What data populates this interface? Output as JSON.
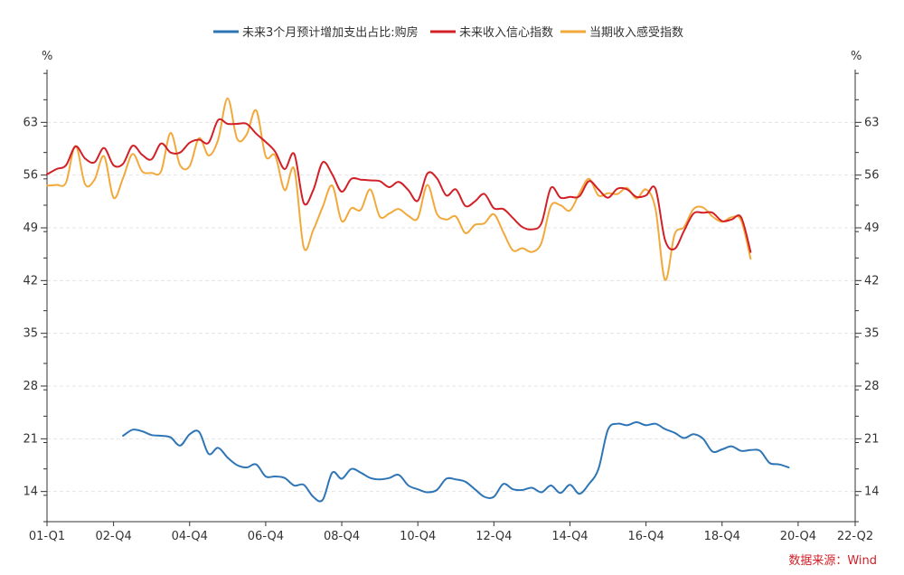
{
  "chart_data": {
    "type": "line",
    "x_tick_labels": [
      "01-Q1",
      "02-Q4",
      "04-Q4",
      "06-Q4",
      "08-Q4",
      "10-Q4",
      "12-Q4",
      "14-Q4",
      "16-Q4",
      "18-Q4",
      "20-Q4",
      "22-Q2"
    ],
    "x_ticks_quarters": [
      0,
      7,
      15,
      23,
      31,
      39,
      47,
      55,
      63,
      71,
      79,
      85
    ],
    "x_range_quarters": [
      0,
      85
    ],
    "y_left": {
      "unit": "%",
      "ticks": [
        14,
        21,
        28,
        35,
        42,
        49,
        56,
        63
      ],
      "range": [
        10,
        70
      ]
    },
    "y_right": {
      "unit": "%",
      "ticks": [
        14,
        21,
        28,
        35,
        42,
        49,
        56,
        63
      ],
      "range": [
        10,
        70
      ]
    },
    "grid": "horizontal dashed",
    "legend_position": "top-center",
    "source": "数据来源：Wind",
    "series": [
      {
        "name": "未来3个月预计增加支出占比:购房",
        "color": "#2e75b6",
        "points": [
          [
            8,
            21.4
          ],
          [
            9,
            22.2
          ],
          [
            10,
            22.0
          ],
          [
            11,
            21.5
          ],
          [
            12,
            21.4
          ],
          [
            13,
            21.2
          ],
          [
            14,
            20.1
          ],
          [
            15,
            21.6
          ],
          [
            16,
            21.9
          ],
          [
            17,
            19.0
          ],
          [
            18,
            19.8
          ],
          [
            19,
            18.5
          ],
          [
            20,
            17.5
          ],
          [
            21,
            17.2
          ],
          [
            22,
            17.6
          ],
          [
            23,
            16.0
          ],
          [
            24,
            16.0
          ],
          [
            25,
            15.8
          ],
          [
            26,
            14.8
          ],
          [
            27,
            14.9
          ],
          [
            28,
            13.3
          ],
          [
            29,
            12.9
          ],
          [
            30,
            16.5
          ],
          [
            31,
            15.7
          ],
          [
            32,
            17.0
          ],
          [
            33,
            16.5
          ],
          [
            34,
            15.8
          ],
          [
            35,
            15.6
          ],
          [
            36,
            15.8
          ],
          [
            37,
            16.2
          ],
          [
            38,
            14.8
          ],
          [
            39,
            14.3
          ],
          [
            40,
            13.9
          ],
          [
            41,
            14.2
          ],
          [
            42,
            15.7
          ],
          [
            43,
            15.6
          ],
          [
            44,
            15.3
          ],
          [
            45,
            14.3
          ],
          [
            46,
            13.3
          ],
          [
            47,
            13.3
          ],
          [
            48,
            15.0
          ],
          [
            49,
            14.3
          ],
          [
            50,
            14.2
          ],
          [
            51,
            14.5
          ],
          [
            52,
            13.9
          ],
          [
            53,
            14.8
          ],
          [
            54,
            13.8
          ],
          [
            55,
            14.9
          ],
          [
            56,
            13.7
          ],
          [
            57,
            15.0
          ],
          [
            58,
            17.0
          ],
          [
            59,
            22.2
          ],
          [
            60,
            23.0
          ],
          [
            61,
            22.8
          ],
          [
            62,
            23.2
          ],
          [
            63,
            22.8
          ],
          [
            64,
            23.0
          ],
          [
            65,
            22.3
          ],
          [
            66,
            21.8
          ],
          [
            67,
            21.1
          ],
          [
            68,
            21.6
          ],
          [
            69,
            21.0
          ],
          [
            70,
            19.3
          ],
          [
            71,
            19.6
          ],
          [
            72,
            20.0
          ],
          [
            73,
            19.4
          ],
          [
            74,
            19.5
          ],
          [
            75,
            19.4
          ],
          [
            76,
            17.8
          ],
          [
            77,
            17.6
          ],
          [
            78,
            17.2
          ]
        ]
      },
      {
        "name": "未来收入信心指数",
        "color": "#d22027",
        "points": [
          [
            0,
            56.1
          ],
          [
            1,
            56.8
          ],
          [
            2,
            57.3
          ],
          [
            3,
            59.8
          ],
          [
            4,
            58.2
          ],
          [
            5,
            57.7
          ],
          [
            6,
            59.6
          ],
          [
            7,
            57.3
          ],
          [
            8,
            57.5
          ],
          [
            9,
            59.9
          ],
          [
            10,
            58.7
          ],
          [
            11,
            58.1
          ],
          [
            12,
            60.2
          ],
          [
            13,
            59.0
          ],
          [
            14,
            59.0
          ],
          [
            15,
            60.3
          ],
          [
            16,
            60.7
          ],
          [
            17,
            60.3
          ],
          [
            18,
            63.3
          ],
          [
            19,
            62.8
          ],
          [
            20,
            62.8
          ],
          [
            21,
            62.8
          ],
          [
            22,
            61.5
          ],
          [
            23,
            60.4
          ],
          [
            24,
            59.1
          ],
          [
            25,
            56.8
          ],
          [
            26,
            58.8
          ],
          [
            27,
            52.3
          ],
          [
            28,
            54.0
          ],
          [
            29,
            57.7
          ],
          [
            30,
            56.1
          ],
          [
            31,
            53.8
          ],
          [
            32,
            55.5
          ],
          [
            33,
            55.4
          ],
          [
            34,
            55.3
          ],
          [
            35,
            55.2
          ],
          [
            36,
            54.4
          ],
          [
            37,
            55.1
          ],
          [
            38,
            54.0
          ],
          [
            39,
            52.6
          ],
          [
            40,
            56.2
          ],
          [
            41,
            55.6
          ],
          [
            42,
            53.3
          ],
          [
            43,
            54.1
          ],
          [
            44,
            51.9
          ],
          [
            45,
            52.5
          ],
          [
            46,
            53.5
          ],
          [
            47,
            51.6
          ],
          [
            48,
            51.5
          ],
          [
            49,
            50.3
          ],
          [
            50,
            49.1
          ],
          [
            51,
            48.8
          ],
          [
            52,
            49.6
          ],
          [
            53,
            54.3
          ],
          [
            54,
            53.0
          ],
          [
            55,
            53.1
          ],
          [
            56,
            53.2
          ],
          [
            57,
            55.2
          ],
          [
            58,
            54.1
          ],
          [
            59,
            53.0
          ],
          [
            60,
            54.2
          ],
          [
            61,
            54.1
          ],
          [
            62,
            53.1
          ],
          [
            63,
            53.3
          ],
          [
            64,
            54.2
          ],
          [
            65,
            47.4
          ],
          [
            66,
            46.2
          ],
          [
            67,
            48.6
          ],
          [
            68,
            50.9
          ],
          [
            69,
            51.0
          ],
          [
            70,
            51.0
          ],
          [
            71,
            49.9
          ],
          [
            72,
            50.1
          ],
          [
            73,
            50.4
          ],
          [
            74,
            45.8
          ]
        ]
      },
      {
        "name": "当期收入感受指数",
        "color": "#f2a93b",
        "points": [
          [
            0,
            54.6
          ],
          [
            1,
            54.7
          ],
          [
            2,
            55.0
          ],
          [
            3,
            59.9
          ],
          [
            4,
            54.8
          ],
          [
            5,
            55.4
          ],
          [
            6,
            58.5
          ],
          [
            7,
            53.0
          ],
          [
            8,
            55.6
          ],
          [
            9,
            58.8
          ],
          [
            10,
            56.5
          ],
          [
            11,
            56.3
          ],
          [
            12,
            56.5
          ],
          [
            13,
            61.6
          ],
          [
            14,
            57.3
          ],
          [
            15,
            57.2
          ],
          [
            16,
            60.9
          ],
          [
            17,
            58.6
          ],
          [
            18,
            60.7
          ],
          [
            19,
            66.2
          ],
          [
            20,
            60.8
          ],
          [
            21,
            61.4
          ],
          [
            22,
            64.6
          ],
          [
            23,
            58.5
          ],
          [
            24,
            58.6
          ],
          [
            25,
            54.0
          ],
          [
            26,
            56.8
          ],
          [
            27,
            46.4
          ],
          [
            28,
            48.7
          ],
          [
            29,
            51.8
          ],
          [
            30,
            54.6
          ],
          [
            31,
            49.9
          ],
          [
            32,
            51.6
          ],
          [
            33,
            51.4
          ],
          [
            34,
            54.1
          ],
          [
            35,
            50.5
          ],
          [
            36,
            50.9
          ],
          [
            37,
            51.5
          ],
          [
            38,
            50.6
          ],
          [
            39,
            50.3
          ],
          [
            40,
            54.7
          ],
          [
            41,
            50.9
          ],
          [
            42,
            50.1
          ],
          [
            43,
            50.5
          ],
          [
            44,
            48.3
          ],
          [
            45,
            49.4
          ],
          [
            46,
            49.6
          ],
          [
            47,
            50.8
          ],
          [
            48,
            48.4
          ],
          [
            49,
            46.0
          ],
          [
            50,
            46.3
          ],
          [
            51,
            45.8
          ],
          [
            52,
            47.0
          ],
          [
            53,
            51.9
          ],
          [
            54,
            52.0
          ],
          [
            55,
            51.3
          ],
          [
            56,
            53.6
          ],
          [
            57,
            55.5
          ],
          [
            58,
            53.3
          ],
          [
            59,
            53.6
          ],
          [
            60,
            53.5
          ],
          [
            61,
            54.3
          ],
          [
            62,
            52.9
          ],
          [
            63,
            54.1
          ],
          [
            64,
            51.5
          ],
          [
            65,
            42.1
          ],
          [
            66,
            48.1
          ],
          [
            67,
            49.1
          ],
          [
            68,
            51.5
          ],
          [
            69,
            51.7
          ],
          [
            70,
            50.5
          ],
          [
            71,
            49.8
          ],
          [
            72,
            50.4
          ],
          [
            73,
            50.0
          ],
          [
            74,
            44.9
          ]
        ]
      }
    ]
  }
}
